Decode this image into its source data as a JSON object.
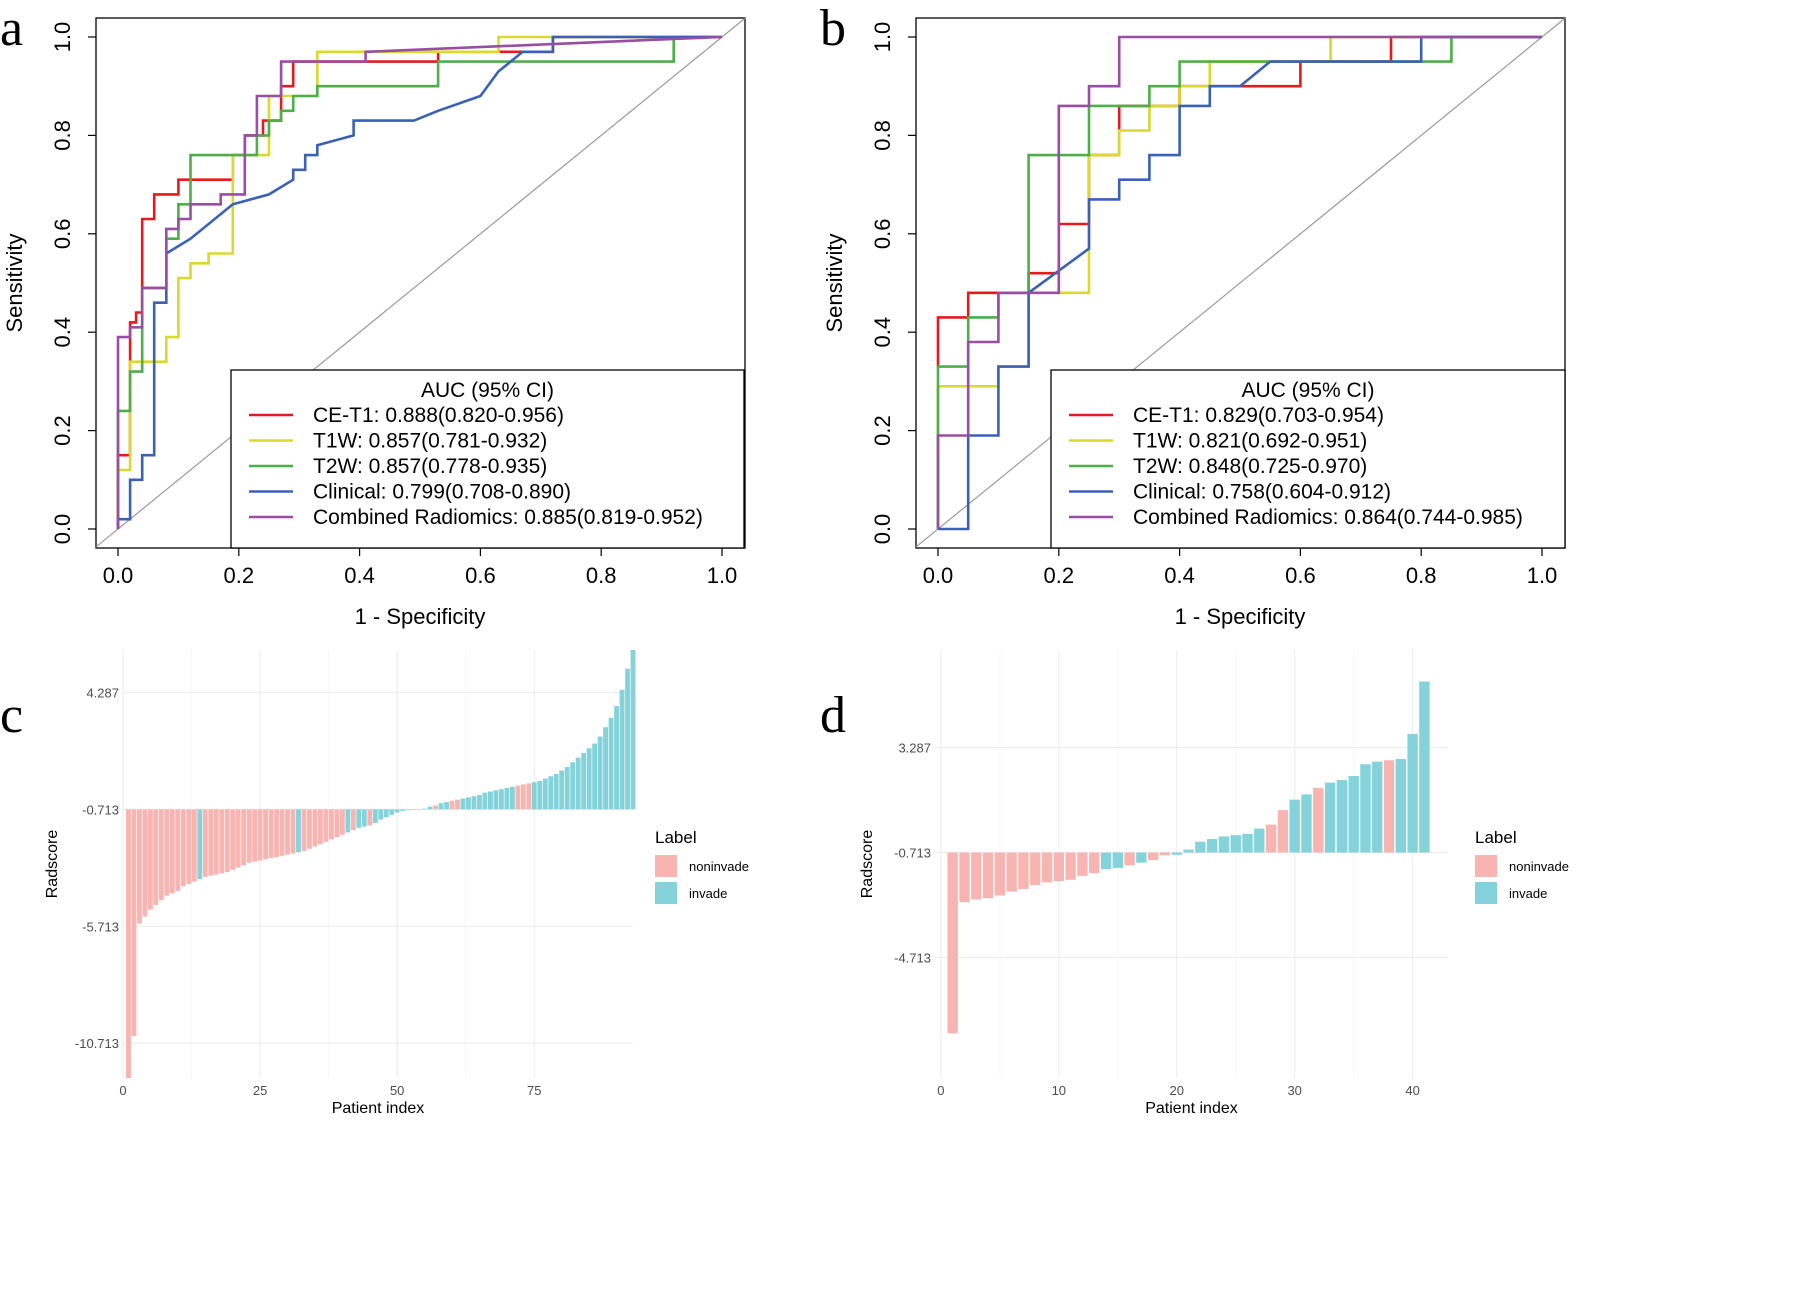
{
  "panels": {
    "a": "a",
    "b": "b",
    "c": "c",
    "d": "d"
  },
  "chart_data": [
    {
      "id": "a",
      "type": "line",
      "subtype": "roc",
      "xlabel": "1 - Specificity",
      "ylabel": "Sensitivity",
      "xlim": [
        0,
        1
      ],
      "ylim": [
        0,
        1
      ],
      "ticks": [
        "0.0",
        "0.2",
        "0.4",
        "0.6",
        "0.8",
        "1.0"
      ],
      "legend_title": "AUC (95% CI)",
      "series": [
        {
          "name": "CE-T1",
          "label": "CE-T1: 0.888(0.820-0.956)",
          "color": "#e41a1c",
          "x": [
            0,
            0,
            0.02,
            0.02,
            0.03,
            0.03,
            0.04,
            0.04,
            0.06,
            0.06,
            0.1,
            0.1,
            0.19,
            0.19,
            0.21,
            0.21,
            0.24,
            0.24,
            0.27,
            0.27,
            0.29,
            0.29,
            0.53,
            0.53,
            0.63,
            0.63,
            0.72,
            0.72,
            0.75,
            0.75,
            1
          ],
          "y": [
            0,
            0.15,
            0.15,
            0.42,
            0.42,
            0.44,
            0.44,
            0.63,
            0.63,
            0.68,
            0.68,
            0.71,
            0.71,
            0.76,
            0.76,
            0.8,
            0.8,
            0.83,
            0.83,
            0.9,
            0.9,
            0.95,
            0.95,
            0.97,
            0.97,
            0.97,
            0.97,
            1,
            1,
            1,
            1
          ]
        },
        {
          "name": "T1W",
          "label": "T1W: 0.857(0.781-0.932)",
          "color": "#d9d92e",
          "x": [
            0,
            0,
            0.02,
            0.02,
            0.06,
            0.06,
            0.08,
            0.08,
            0.1,
            0.1,
            0.12,
            0.12,
            0.15,
            0.15,
            0.19,
            0.19,
            0.25,
            0.25,
            0.3,
            0.3,
            0.33,
            0.33,
            0.63,
            0.63,
            1
          ],
          "y": [
            0,
            0.12,
            0.12,
            0.34,
            0.34,
            0.34,
            0.34,
            0.39,
            0.39,
            0.51,
            0.51,
            0.54,
            0.54,
            0.56,
            0.56,
            0.76,
            0.76,
            0.88,
            0.88,
            0.88,
            0.88,
            0.97,
            0.97,
            1,
            1
          ]
        },
        {
          "name": "T2W",
          "label": "T2W: 0.857(0.778-0.935)",
          "color": "#4daf4a",
          "x": [
            0,
            0,
            0.02,
            0.02,
            0.04,
            0.04,
            0.08,
            0.08,
            0.1,
            0.1,
            0.12,
            0.12,
            0.19,
            0.19,
            0.23,
            0.23,
            0.25,
            0.25,
            0.27,
            0.27,
            0.29,
            0.29,
            0.33,
            0.33,
            0.53,
            0.53,
            0.92,
            0.92,
            1
          ],
          "y": [
            0,
            0.24,
            0.24,
            0.32,
            0.32,
            0.49,
            0.49,
            0.59,
            0.59,
            0.66,
            0.66,
            0.76,
            0.76,
            0.76,
            0.76,
            0.8,
            0.8,
            0.83,
            0.83,
            0.85,
            0.85,
            0.88,
            0.88,
            0.9,
            0.9,
            0.95,
            0.95,
            1,
            1
          ]
        },
        {
          "name": "Clinical",
          "label": "Clinical: 0.799(0.708-0.890)",
          "color": "#3a61b5",
          "x": [
            0,
            0,
            0.02,
            0.02,
            0.04,
            0.04,
            0.06,
            0.06,
            0.08,
            0.08,
            0.12,
            0.12,
            0.19,
            0.25,
            0.29,
            0.29,
            0.31,
            0.31,
            0.33,
            0.33,
            0.39,
            0.39,
            0.49,
            0.53,
            0.53,
            0.6,
            0.6,
            0.63,
            0.67,
            0.67,
            0.72,
            0.72,
            0.75,
            0.75,
            1
          ],
          "y": [
            0,
            0.02,
            0.02,
            0.1,
            0.1,
            0.15,
            0.15,
            0.46,
            0.46,
            0.56,
            0.59,
            0.59,
            0.66,
            0.68,
            0.71,
            0.73,
            0.73,
            0.76,
            0.76,
            0.78,
            0.8,
            0.83,
            0.83,
            0.85,
            0.85,
            0.88,
            0.88,
            0.93,
            0.97,
            0.97,
            0.97,
            1,
            1,
            1,
            1
          ]
        },
        {
          "name": "Combined Radiomics",
          "label": "Combined Radiomics: 0.885(0.819-0.952)",
          "color": "#984ea3",
          "x": [
            0,
            0,
            0.02,
            0.02,
            0.04,
            0.04,
            0.08,
            0.08,
            0.1,
            0.1,
            0.12,
            0.12,
            0.17,
            0.17,
            0.21,
            0.21,
            0.23,
            0.23,
            0.27,
            0.27,
            0.41,
            0.41,
            1
          ],
          "y": [
            0,
            0.39,
            0.39,
            0.41,
            0.41,
            0.49,
            0.49,
            0.61,
            0.61,
            0.63,
            0.63,
            0.66,
            0.66,
            0.68,
            0.68,
            0.8,
            0.8,
            0.88,
            0.88,
            0.95,
            0.95,
            0.97,
            1
          ]
        }
      ]
    },
    {
      "id": "b",
      "type": "line",
      "subtype": "roc",
      "xlabel": "1 - Specificity",
      "ylabel": "Sensitivity",
      "xlim": [
        0,
        1
      ],
      "ylim": [
        0,
        1
      ],
      "ticks": [
        "0.0",
        "0.2",
        "0.4",
        "0.6",
        "0.8",
        "1.0"
      ],
      "legend_title": "AUC (95% CI)",
      "series": [
        {
          "name": "CE-T1",
          "label": "CE-T1: 0.829(0.703-0.954)",
          "color": "#e41a1c",
          "x": [
            0,
            0,
            0.05,
            0.05,
            0.1,
            0.1,
            0.15,
            0.15,
            0.2,
            0.2,
            0.25,
            0.25,
            0.3,
            0.3,
            0.35,
            0.35,
            0.4,
            0.4,
            0.5,
            0.5,
            0.6,
            0.6,
            0.75,
            0.75,
            1
          ],
          "y": [
            0.33,
            0.43,
            0.43,
            0.48,
            0.48,
            0.48,
            0.48,
            0.52,
            0.52,
            0.62,
            0.62,
            0.76,
            0.76,
            0.86,
            0.86,
            0.86,
            0.86,
            0.9,
            0.9,
            0.9,
            0.9,
            0.95,
            0.95,
            1,
            1
          ]
        },
        {
          "name": "T1W",
          "label": "T1W: 0.821(0.692-0.951)",
          "color": "#d9d92e",
          "x": [
            0,
            0,
            0.1,
            0.1,
            0.15,
            0.15,
            0.25,
            0.25,
            0.3,
            0.3,
            0.35,
            0.35,
            0.4,
            0.4,
            0.45,
            0.45,
            0.65,
            0.65,
            1
          ],
          "y": [
            0,
            0.29,
            0.29,
            0.33,
            0.33,
            0.48,
            0.48,
            0.76,
            0.76,
            0.81,
            0.81,
            0.86,
            0.86,
            0.9,
            0.9,
            0.95,
            0.95,
            1,
            1
          ]
        },
        {
          "name": "T2W",
          "label": "T2W: 0.848(0.725-0.970)",
          "color": "#4daf4a",
          "x": [
            0,
            0,
            0.05,
            0.05,
            0.1,
            0.1,
            0.15,
            0.15,
            0.25,
            0.25,
            0.35,
            0.35,
            0.4,
            0.4,
            0.85,
            0.85,
            1
          ],
          "y": [
            0,
            0.33,
            0.33,
            0.43,
            0.43,
            0.48,
            0.48,
            0.76,
            0.76,
            0.86,
            0.86,
            0.9,
            0.9,
            0.95,
            0.95,
            1,
            1
          ]
        },
        {
          "name": "Clinical",
          "label": "Clinical: 0.758(0.604-0.912)",
          "color": "#3a61b5",
          "x": [
            0,
            0.05,
            0.05,
            0.1,
            0.1,
            0.15,
            0.15,
            0.25,
            0.25,
            0.3,
            0.3,
            0.35,
            0.35,
            0.4,
            0.4,
            0.45,
            0.45,
            0.5,
            0.55,
            0.8,
            0.8,
            1
          ],
          "y": [
            0,
            0,
            0.19,
            0.19,
            0.33,
            0.33,
            0.48,
            0.57,
            0.67,
            0.67,
            0.71,
            0.71,
            0.76,
            0.76,
            0.86,
            0.86,
            0.9,
            0.9,
            0.95,
            0.95,
            1,
            1
          ]
        },
        {
          "name": "Combined Radiomics",
          "label": "Combined Radiomics: 0.864(0.744-0.985)",
          "color": "#984ea3",
          "x": [
            0,
            0,
            0.05,
            0.05,
            0.1,
            0.1,
            0.2,
            0.2,
            0.25,
            0.25,
            0.3,
            0.3,
            1
          ],
          "y": [
            0,
            0.19,
            0.19,
            0.38,
            0.38,
            0.48,
            0.48,
            0.86,
            0.86,
            0.9,
            0.9,
            1,
            1
          ]
        }
      ]
    },
    {
      "id": "c",
      "type": "bar",
      "subtype": "waterfall",
      "xlabel": "Patient index",
      "ylabel": "Radscore",
      "xlim": [
        0,
        93
      ],
      "ylim": [
        -12.2,
        6.1
      ],
      "xticks": [
        0,
        25,
        50,
        75
      ],
      "xtick_labels": [
        "0",
        "25",
        "50",
        "75"
      ],
      "yticks": [
        4.287,
        -0.713,
        -5.713,
        -10.713
      ],
      "ytick_labels": [
        "4.287",
        "-0.713",
        "-5.713",
        "-10.713"
      ],
      "baseline": -0.713,
      "legend_title": "Label",
      "legend": [
        "noninvade",
        "invade"
      ],
      "colors": {
        "noninvade": "#f8b4b0",
        "invade": "#84d3da"
      },
      "values": [
        -12.2,
        -10.4,
        -5.6,
        -5.3,
        -5.0,
        -4.8,
        -4.6,
        -4.4,
        -4.3,
        -4.2,
        -4.0,
        -3.9,
        -3.8,
        -3.7,
        -3.6,
        -3.55,
        -3.5,
        -3.45,
        -3.4,
        -3.3,
        -3.2,
        -3.1,
        -3.0,
        -2.95,
        -2.9,
        -2.85,
        -2.8,
        -2.75,
        -2.7,
        -2.65,
        -2.6,
        -2.55,
        -2.5,
        -2.4,
        -2.3,
        -2.2,
        -2.1,
        -2.0,
        -1.9,
        -1.8,
        -1.7,
        -1.6,
        -1.5,
        -1.45,
        -1.4,
        -1.3,
        -1.15,
        -1.05,
        -0.95,
        -0.85,
        -0.78,
        -0.75,
        -0.72,
        -0.7,
        -0.68,
        -0.6,
        -0.55,
        -0.45,
        -0.4,
        -0.35,
        -0.3,
        -0.25,
        -0.2,
        -0.15,
        -0.1,
        0.0,
        0.05,
        0.1,
        0.15,
        0.2,
        0.25,
        0.3,
        0.35,
        0.4,
        0.45,
        0.5,
        0.6,
        0.7,
        0.8,
        0.95,
        1.1,
        1.3,
        1.5,
        1.7,
        1.9,
        2.1,
        2.4,
        2.8,
        3.2,
        3.7,
        4.4,
        5.3,
        6.1
      ],
      "labels": [
        "noninvade",
        "noninvade",
        "noninvade",
        "noninvade",
        "noninvade",
        "noninvade",
        "noninvade",
        "noninvade",
        "noninvade",
        "noninvade",
        "noninvade",
        "noninvade",
        "noninvade",
        "invade",
        "noninvade",
        "noninvade",
        "noninvade",
        "noninvade",
        "noninvade",
        "noninvade",
        "noninvade",
        "noninvade",
        "noninvade",
        "noninvade",
        "noninvade",
        "noninvade",
        "noninvade",
        "noninvade",
        "noninvade",
        "noninvade",
        "noninvade",
        "invade",
        "noninvade",
        "noninvade",
        "noninvade",
        "noninvade",
        "noninvade",
        "noninvade",
        "noninvade",
        "noninvade",
        "invade",
        "noninvade",
        "invade",
        "invade",
        "noninvade",
        "invade",
        "invade",
        "invade",
        "invade",
        "invade",
        "invade",
        "invade",
        "noninvade",
        "noninvade",
        "invade",
        "invade",
        "noninvade",
        "invade",
        "invade",
        "noninvade",
        "noninvade",
        "invade",
        "invade",
        "invade",
        "invade",
        "invade",
        "invade",
        "invade",
        "invade",
        "invade",
        "invade",
        "noninvade",
        "noninvade",
        "noninvade",
        "invade",
        "invade",
        "invade",
        "invade",
        "invade",
        "invade",
        "invade",
        "invade",
        "invade",
        "invade",
        "invade",
        "invade",
        "invade",
        "invade",
        "invade",
        "invade",
        "invade",
        "invade",
        "invade"
      ]
    },
    {
      "id": "d",
      "type": "bar",
      "subtype": "waterfall",
      "xlabel": "Patient index",
      "ylabel": "Radscore",
      "xlim": [
        -0.5,
        43
      ],
      "ylim": [
        -9.3,
        7.0
      ],
      "xticks": [
        0,
        10,
        20,
        30,
        40
      ],
      "xtick_labels": [
        "0",
        "10",
        "20",
        "30",
        "40"
      ],
      "yticks": [
        3.287,
        -0.713,
        -4.713
      ],
      "ytick_labels": [
        "3.287",
        "-0.713",
        "-4.713"
      ],
      "baseline": -0.713,
      "legend_title": "Label",
      "legend": [
        "noninvade",
        "invade"
      ],
      "colors": {
        "noninvade": "#f8b4b0",
        "invade": "#84d3da"
      },
      "values": [
        -7.6,
        -2.6,
        -2.5,
        -2.45,
        -2.35,
        -2.2,
        -2.1,
        -1.95,
        -1.85,
        -1.8,
        -1.75,
        -1.6,
        -1.5,
        -1.35,
        -1.3,
        -1.2,
        -1.1,
        -1.0,
        -0.82,
        -0.8,
        -0.6,
        -0.3,
        -0.2,
        -0.1,
        -0.05,
        0.0,
        0.2,
        0.35,
        0.9,
        1.3,
        1.5,
        1.75,
        1.95,
        2.05,
        2.2,
        2.65,
        2.75,
        2.8,
        2.85,
        3.8,
        5.8
      ],
      "labels": [
        "noninvade",
        "noninvade",
        "noninvade",
        "noninvade",
        "noninvade",
        "noninvade",
        "noninvade",
        "noninvade",
        "noninvade",
        "noninvade",
        "noninvade",
        "noninvade",
        "noninvade",
        "invade",
        "invade",
        "noninvade",
        "invade",
        "noninvade",
        "noninvade",
        "invade",
        "invade",
        "invade",
        "invade",
        "invade",
        "invade",
        "invade",
        "invade",
        "noninvade",
        "noninvade",
        "invade",
        "invade",
        "noninvade",
        "invade",
        "invade",
        "invade",
        "invade",
        "invade",
        "noninvade",
        "invade",
        "invade",
        "invade"
      ]
    }
  ]
}
